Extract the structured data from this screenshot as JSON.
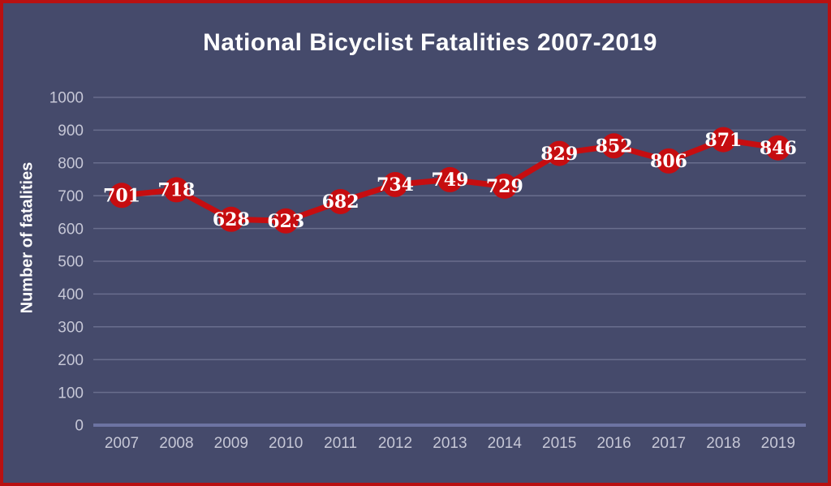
{
  "window": {
    "background_color": "#454a6b",
    "border_color": "#b81111"
  },
  "chart_data": {
    "type": "line",
    "title": "National Bicyclist Fatalities 2007-2019",
    "ylabel": "Number of fatalities",
    "xlabel": "",
    "categories": [
      "2007",
      "2008",
      "2009",
      "2010",
      "2011",
      "2012",
      "2013",
      "2014",
      "2015",
      "2016",
      "2017",
      "2018",
      "2019"
    ],
    "values": [
      701,
      718,
      628,
      623,
      682,
      734,
      749,
      729,
      829,
      852,
      806,
      871,
      846
    ],
    "ylim": [
      0,
      1000
    ],
    "yticks": [
      0,
      100,
      200,
      300,
      400,
      500,
      600,
      700,
      800,
      900,
      1000
    ],
    "grid": "horizontal",
    "legend": "none",
    "marker_style": "large-filled-circle",
    "data_labels_shown": true,
    "colors": {
      "line": "#c60d10",
      "marker": "#c60d10",
      "data_label": "#ffffff",
      "title": "#ffffff",
      "axis_title": "#ffffff",
      "tick_label": "#c6c7d6",
      "gridline": "rgba(200,206,230,0.28)",
      "baseline": "#6d74a2"
    }
  }
}
